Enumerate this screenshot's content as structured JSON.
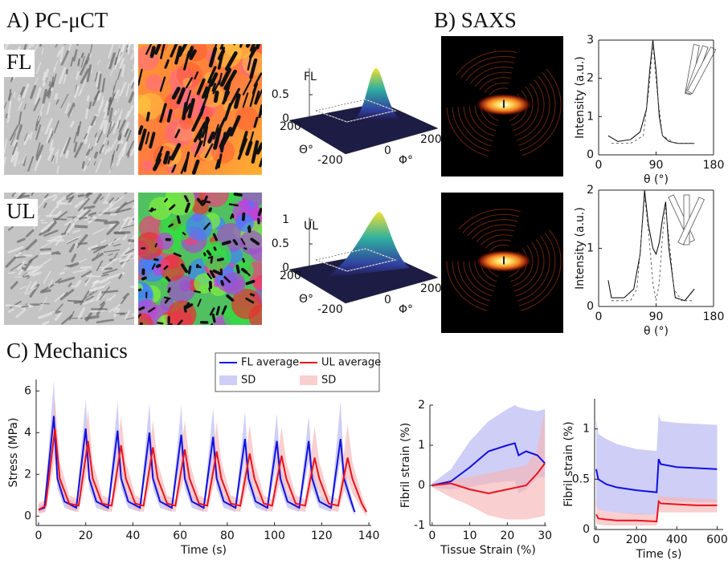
{
  "labels": {
    "panel_a": "A) PC-μCT",
    "panel_b": "B) SAXS",
    "panel_c": "C) Mechanics",
    "row_fl": "FL",
    "row_ul": "UL"
  },
  "surfaces": [
    {
      "title": "FL",
      "zticks": [
        0,
        0.5
      ],
      "theta_label": "Θ°",
      "theta_ticks": [
        200
      ],
      "phi_label": "Φ°",
      "phi_ticks": [
        -200,
        0,
        200
      ]
    },
    {
      "title": "UL",
      "zticks": [
        0,
        0.5,
        1
      ],
      "theta_label": "Θ°",
      "theta_ticks": [
        200
      ],
      "phi_label": "Φ°",
      "phi_ticks": [
        -200,
        0,
        200
      ]
    }
  ],
  "chart_data": [
    {
      "type": "line",
      "xlabel": "θ (°)",
      "ylabel": "Intensity (a.u.)",
      "xlim": [
        0,
        180
      ],
      "xticks": [
        0,
        90,
        180
      ],
      "ylim": [
        0,
        3
      ],
      "yticks": [
        0,
        1,
        2,
        3
      ],
      "series": [
        {
          "color": "#000000",
          "x": [
            15,
            30,
            50,
            65,
            75,
            80,
            85,
            90,
            95,
            100,
            110,
            125,
            150
          ],
          "values": [
            0.5,
            0.35,
            0.4,
            0.6,
            1.2,
            2.2,
            3.0,
            2.2,
            1.0,
            0.5,
            0.35,
            0.3,
            0.3
          ]
        },
        {
          "color": "#555555",
          "dash": true,
          "x": [
            20,
            50,
            70,
            78,
            85,
            92,
            100,
            120,
            150
          ],
          "values": [
            0.3,
            0.3,
            0.5,
            1.6,
            2.9,
            1.6,
            0.5,
            0.3,
            0.3
          ]
        }
      ]
    },
    {
      "type": "line",
      "xlabel": "θ (°)",
      "ylabel": "Intensity (a.u.)",
      "xlim": [
        0,
        180
      ],
      "xticks": [
        0,
        90,
        180
      ],
      "ylim": [
        0,
        2
      ],
      "yticks": [
        0,
        1,
        2
      ],
      "series": [
        {
          "color": "#000000",
          "x": [
            15,
            20,
            40,
            55,
            65,
            72,
            78,
            85,
            90,
            95,
            100,
            105,
            110,
            120,
            135,
            150
          ],
          "values": [
            0.45,
            0.15,
            0.15,
            0.3,
            0.9,
            2.0,
            1.4,
            1.0,
            0.9,
            1.1,
            1.5,
            1.8,
            1.0,
            0.15,
            0.1,
            0.3
          ]
        },
        {
          "color": "#555555",
          "dash": true,
          "x": [
            20,
            50,
            60,
            67,
            72,
            78,
            85,
            90,
            95,
            100,
            105,
            110,
            118,
            130,
            150
          ],
          "values": [
            0.1,
            0.1,
            0.3,
            1.2,
            1.9,
            1.3,
            0.4,
            0.1,
            0.4,
            1.2,
            1.7,
            1.2,
            0.3,
            0.1,
            0.1
          ]
        }
      ]
    },
    {
      "type": "line",
      "xlabel": "Time (s)",
      "ylabel": "Stress (MPa)",
      "xlim": [
        -1,
        141
      ],
      "xticks": [
        0,
        20,
        40,
        60,
        80,
        100,
        120,
        140
      ],
      "ylim": [
        -0.45,
        6.55
      ],
      "yticks": [
        0,
        2,
        4,
        6
      ],
      "series": [
        {
          "name": "FL average",
          "color": "#1010e0",
          "x": [
            0,
            2.5,
            6.5,
            8,
            11,
            16,
            20,
            21.5,
            24.5,
            29.5,
            33.5,
            35,
            38,
            43,
            47,
            48.5,
            51.5,
            56.5,
            60.5,
            62,
            65,
            70,
            74,
            75.5,
            78.5,
            83.5,
            87.5,
            89,
            92,
            97,
            101,
            102.5,
            105.5,
            110.5,
            114.5,
            116,
            119,
            124,
            128,
            129.5,
            132.5,
            134
          ],
          "values": [
            0.3,
            0.4,
            4.8,
            1.8,
            0.7,
            0.4,
            4.2,
            1.8,
            0.7,
            0.4,
            4.1,
            1.8,
            0.7,
            0.4,
            4.0,
            1.8,
            0.7,
            0.4,
            3.9,
            1.8,
            0.7,
            0.4,
            3.8,
            1.8,
            0.7,
            0.4,
            3.7,
            1.8,
            0.7,
            0.4,
            3.6,
            1.8,
            0.7,
            0.4,
            3.6,
            1.8,
            0.7,
            0.4,
            3.7,
            1.8,
            0.7,
            0.2
          ]
        },
        {
          "name": "SD",
          "color": "#b4b4f2",
          "x": [
            0,
            2.5,
            6.5,
            8,
            11,
            16,
            20,
            21.5,
            24.5,
            29.5,
            33.5,
            35,
            38,
            43,
            47,
            48.5,
            51.5,
            56.5,
            60.5,
            62,
            65,
            70,
            74,
            75.5,
            78.5,
            83.5,
            87.5,
            89,
            92,
            97,
            101,
            102.5,
            105.5,
            110.5,
            114.5,
            116,
            119,
            124,
            128,
            129.5,
            132.5,
            134
          ],
          "upper": [
            0.5,
            0.6,
            6.5,
            2.4,
            1.0,
            0.6,
            5.6,
            2.4,
            1.0,
            0.6,
            5.5,
            2.4,
            1.0,
            0.6,
            5.4,
            2.4,
            1.0,
            0.6,
            5.3,
            2.4,
            1.0,
            0.6,
            5.2,
            2.4,
            1.0,
            0.6,
            5.0,
            2.4,
            1.0,
            0.6,
            4.9,
            2.4,
            1.0,
            0.6,
            4.8,
            2.4,
            1.0,
            0.6,
            5.5,
            2.4,
            1.0,
            0.3
          ],
          "lower": [
            0.2,
            0.2,
            3.6,
            1.3,
            0.4,
            0.2,
            3.2,
            1.3,
            0.4,
            0.2,
            3.1,
            1.3,
            0.4,
            0.2,
            3.0,
            1.3,
            0.4,
            0.2,
            2.9,
            1.3,
            0.4,
            0.2,
            2.8,
            1.3,
            0.4,
            0.2,
            2.7,
            1.3,
            0.4,
            0.2,
            2.6,
            1.3,
            0.4,
            0.2,
            2.6,
            1.3,
            0.4,
            0.2,
            2.7,
            1.3,
            0.4,
            0.0
          ]
        },
        {
          "name": "UL average",
          "color": "#e8141e",
          "x": [
            0,
            3,
            7,
            9,
            13,
            17,
            21,
            23,
            27,
            31,
            35,
            37,
            41,
            44.5,
            48.5,
            50.5,
            54.5,
            58,
            62,
            64,
            68,
            71.5,
            75.5,
            77.5,
            81.5,
            85.5,
            89.5,
            91.5,
            95.5,
            99,
            103,
            105,
            109,
            113,
            117,
            119,
            123,
            127,
            131,
            133,
            137,
            139
          ],
          "values": [
            0.3,
            0.5,
            4.2,
            1.8,
            0.6,
            0.5,
            3.6,
            1.8,
            0.6,
            0.5,
            3.4,
            1.8,
            0.6,
            0.5,
            3.3,
            1.8,
            0.6,
            0.5,
            3.2,
            1.8,
            0.6,
            0.5,
            3.1,
            1.8,
            0.6,
            0.5,
            3.0,
            1.8,
            0.6,
            0.5,
            2.9,
            1.8,
            0.6,
            0.5,
            2.8,
            1.8,
            0.6,
            0.5,
            2.8,
            1.8,
            0.6,
            0.2
          ]
        },
        {
          "name": "SD",
          "color": "#f6b6b6",
          "x": [
            0,
            3,
            7,
            9,
            13,
            17,
            21,
            23,
            27,
            31,
            35,
            37,
            41,
            44.5,
            48.5,
            50.5,
            54.5,
            58,
            62,
            64,
            68,
            71.5,
            75.5,
            77.5,
            81.5,
            85.5,
            89.5,
            91.5,
            95.5,
            99,
            103,
            105,
            109,
            113,
            117,
            119,
            123,
            127,
            131,
            133,
            137,
            139
          ],
          "upper": [
            0.6,
            0.8,
            5.6,
            2.6,
            1.0,
            0.8,
            5.1,
            2.6,
            1.0,
            0.8,
            4.8,
            2.6,
            1.0,
            0.8,
            4.6,
            2.6,
            1.0,
            0.8,
            4.6,
            2.6,
            1.0,
            0.8,
            4.5,
            2.6,
            1.0,
            0.8,
            4.4,
            2.6,
            1.0,
            0.8,
            4.3,
            2.6,
            1.0,
            0.8,
            4.3,
            2.6,
            1.0,
            0.8,
            4.4,
            2.6,
            1.0,
            0.4
          ],
          "lower": [
            0.1,
            0.2,
            2.8,
            1.1,
            0.3,
            0.2,
            2.4,
            1.1,
            0.3,
            0.2,
            2.2,
            1.1,
            0.3,
            0.2,
            2.1,
            1.1,
            0.3,
            0.2,
            2.0,
            1.1,
            0.3,
            0.2,
            2.0,
            1.1,
            0.3,
            0.2,
            1.9,
            1.1,
            0.3,
            0.2,
            1.9,
            1.1,
            0.3,
            0.2,
            1.8,
            1.1,
            0.3,
            0.2,
            1.8,
            1.1,
            0.3,
            0.0
          ]
        }
      ]
    },
    {
      "type": "line",
      "xlabel": "Tissue Strain (%)",
      "ylabel": "Fibril strain (%)",
      "xlim": [
        -0.6,
        30.4
      ],
      "xticks": [
        0,
        10,
        20,
        30
      ],
      "ylim": [
        -1,
        2
      ],
      "yticks": [
        -1,
        0,
        1,
        2
      ],
      "series": [
        {
          "color": "#b4b4f2",
          "x": [
            0,
            5,
            10,
            15,
            20,
            22,
            23,
            25,
            28,
            30
          ],
          "upper": [
            0.05,
            0.4,
            1.1,
            1.6,
            1.9,
            2.0,
            1.95,
            1.9,
            1.85,
            1.9
          ],
          "lower": [
            -0.05,
            -0.1,
            -0.05,
            0.05,
            0.1,
            0.1,
            -0.2,
            -0.1,
            0.2,
            0.2
          ]
        },
        {
          "color": "#f6b6b6",
          "x": [
            0,
            5,
            10,
            15,
            20,
            25,
            28,
            30
          ],
          "upper": [
            0.05,
            0.15,
            0.2,
            0.3,
            0.4,
            0.5,
            0.9,
            1.9
          ],
          "lower": [
            -0.05,
            -0.3,
            -0.5,
            -0.75,
            -0.85,
            -0.85,
            -0.8,
            -0.75
          ]
        },
        {
          "color": "#1010e0",
          "x": [
            0,
            5,
            10,
            15,
            20,
            22,
            23,
            25,
            28,
            30
          ],
          "values": [
            0,
            0.1,
            0.45,
            0.85,
            1.0,
            1.05,
            0.75,
            0.85,
            0.75,
            0.55
          ]
        },
        {
          "color": "#e8141e",
          "x": [
            0,
            5,
            10,
            15,
            20,
            25,
            28,
            30
          ],
          "values": [
            0,
            0.05,
            -0.1,
            -0.2,
            -0.1,
            0.0,
            0.3,
            0.55
          ]
        }
      ]
    },
    {
      "type": "line",
      "xlabel": "Time (s)",
      "ylabel": "Fibril strain (%)",
      "xlim": [
        -8,
        630
      ],
      "xticks": [
        0,
        200,
        400,
        600
      ],
      "ylim": [
        0,
        1.3
      ],
      "yticks": [
        0,
        0.5,
        1
      ],
      "series": [
        {
          "color": "#b4b4f2",
          "x": [
            0,
            10,
            50,
            100,
            200,
            300,
            310,
            320,
            400,
            500,
            600
          ],
          "upper": [
            1.1,
            0.95,
            0.9,
            0.85,
            0.8,
            0.78,
            1.15,
            1.08,
            1.06,
            1.05,
            1.04
          ],
          "lower": [
            0.25,
            0.2,
            0.18,
            0.17,
            0.15,
            0.15,
            0.3,
            0.28,
            0.28,
            0.27,
            0.27
          ]
        },
        {
          "color": "#f6b6b6",
          "x": [
            0,
            10,
            50,
            100,
            200,
            300,
            310,
            320,
            400,
            500,
            600
          ],
          "upper": [
            0.3,
            0.2,
            0.18,
            0.17,
            0.16,
            0.15,
            0.35,
            0.33,
            0.32,
            0.31,
            0.3
          ],
          "lower": [
            0.05,
            0.05,
            0.04,
            0.04,
            0.04,
            0.04,
            0.18,
            0.17,
            0.17,
            0.17,
            0.17
          ]
        },
        {
          "color": "#1010e0",
          "x": [
            0,
            10,
            50,
            100,
            200,
            300,
            310,
            320,
            400,
            500,
            600
          ],
          "values": [
            0.6,
            0.5,
            0.45,
            0.42,
            0.39,
            0.37,
            0.7,
            0.65,
            0.62,
            0.61,
            0.6
          ]
        },
        {
          "color": "#e8141e",
          "x": [
            0,
            10,
            50,
            100,
            200,
            300,
            310,
            320,
            400,
            500,
            600
          ],
          "values": [
            0.15,
            0.11,
            0.1,
            0.09,
            0.09,
            0.08,
            0.28,
            0.26,
            0.25,
            0.24,
            0.24
          ]
        }
      ]
    }
  ]
}
